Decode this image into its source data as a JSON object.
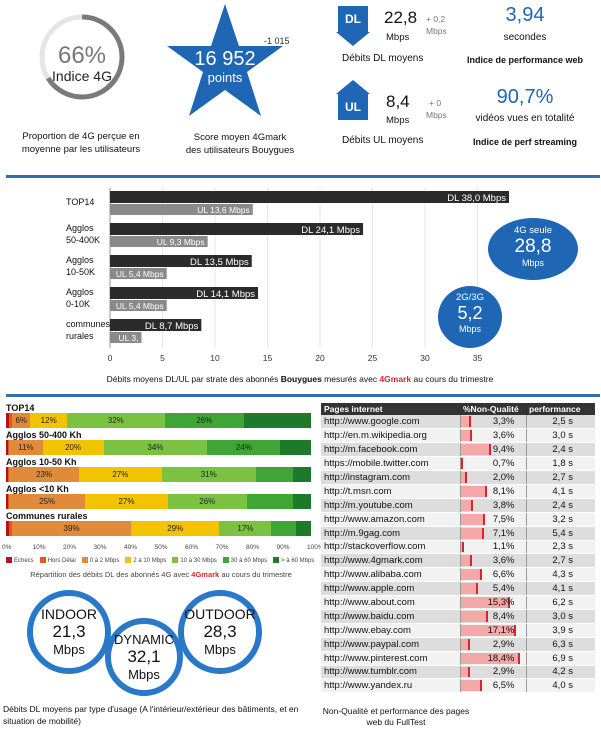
{
  "kpis": {
    "indice_4g": {
      "value": "66%",
      "label": "Indice 4G",
      "caption": "Proportion de 4G perçue en moyenne par les utilisateurs",
      "pct": 66
    },
    "score": {
      "delta": "-1 015",
      "value": "16 952",
      "unit": "points",
      "caption1": "Score moyen 4Gmark",
      "caption2": "des utilisateurs Bouygues"
    },
    "dl": {
      "arrow": "DL",
      "value": "22,8",
      "unit": "Mbps",
      "delta": "+ 0,2",
      "delta_unit": "Mbps",
      "caption": "Débits DL moyens"
    },
    "ul": {
      "arrow": "UL",
      "value": "8,4",
      "unit": "Mbps",
      "delta": "+ 0",
      "delta_unit": "Mbps",
      "caption": "Débits UL moyens"
    },
    "web": {
      "value": "3,94",
      "unit": "secondes",
      "caption": "Indice de performance web"
    },
    "streaming": {
      "value": "90,7%",
      "unit": "vidéos vues en totalité",
      "caption": "Indice de perf streaming"
    }
  },
  "bubbles": {
    "b4g": {
      "l1": "4G seule",
      "l2": "28,8",
      "l3": "Mbps"
    },
    "b23g": {
      "l1": "2G/3G",
      "l2": "5,2",
      "l3": "Mbps"
    }
  },
  "colors": {
    "dl_bar": "#2b2b2b",
    "ul_bar": "#8a8a8a",
    "accent": "#1f66b5",
    "red": "#d9262b"
  },
  "chart_data": [
    {
      "type": "bar",
      "orientation": "horizontal",
      "categories": [
        "TOP14",
        "Agglos 50-400K",
        "Agglos 10-50K",
        "Agglos 0-10K",
        "communes rurales"
      ],
      "category_lines": [
        [
          "TOP14"
        ],
        [
          "Agglos",
          "50-400K"
        ],
        [
          "Agglos",
          "10-50K"
        ],
        [
          "Agglos",
          "0-10K"
        ],
        [
          "communes",
          "rurales"
        ]
      ],
      "series": [
        {
          "name": "DL",
          "values": [
            38.0,
            24.1,
            13.5,
            14.1,
            8.7
          ],
          "labels": [
            "DL 38,0 Mbps",
            "DL 24,1 Mbps",
            "DL 13,5 Mbps",
            "DL 14,1 Mbps",
            "DL 8,7 Mbps"
          ]
        },
        {
          "name": "UL",
          "values": [
            13.6,
            9.3,
            5.4,
            5.4,
            3.0
          ],
          "labels": [
            "UL 13,6 Mbps",
            "UL 9,3 Mbps",
            "UL 5,4 Mbps",
            "UL 5,4 Mbps",
            "UL 3,"
          ]
        }
      ],
      "xlim": [
        0,
        40
      ],
      "xticks": [
        0,
        5,
        10,
        15,
        20,
        25,
        30,
        35
      ],
      "caption_pre": "Débits moyens DL/UL par strate des abonnés ",
      "caption_bold": "Bouygues",
      "caption_mid": " mesurés avec ",
      "caption_brand": "4Gmark",
      "caption_post": " au cours du trimestre"
    },
    {
      "type": "bar",
      "orientation": "horizontal",
      "stacked": true,
      "categories": [
        "TOP14",
        "Agglos 50-400 Kh",
        "Agglos 10-50 Kh",
        "Agglos <10 Kh",
        "Communes rurales"
      ],
      "series_names": [
        "Echecs",
        "Hors Délai",
        "0 à 2 Mbps",
        "2 à 10 Mbps",
        "10 à 30 Mbps",
        "30 à 60 Mbps",
        "> à 60 Mbps"
      ],
      "series_colors": [
        "#b0141a",
        "#e05a1e",
        "#e08a3a",
        "#f2c300",
        "#7cc242",
        "#3fa535",
        "#1d7a2a"
      ],
      "values": [
        [
          1,
          1,
          6,
          12,
          32,
          26,
          22
        ],
        [
          0.5,
          0.5,
          11,
          20,
          34,
          24,
          10
        ],
        [
          0.5,
          0.5,
          23,
          27,
          31,
          12,
          6
        ],
        [
          0.5,
          0.5,
          25,
          27,
          26,
          15,
          6
        ],
        [
          1,
          1,
          39,
          29,
          17,
          8,
          5
        ]
      ],
      "segment_labels": [
        [
          "",
          "",
          "6%",
          "12%",
          "32%",
          "26%",
          ""
        ],
        [
          "",
          "",
          "11%",
          "20%",
          "34%",
          "24%",
          ""
        ],
        [
          "",
          "",
          "23%",
          "27%",
          "31%",
          "",
          ""
        ],
        [
          "",
          "",
          "25%",
          "27%",
          "26%",
          "",
          ""
        ],
        [
          "",
          "",
          "39%",
          "29%",
          "17%",
          "",
          ""
        ]
      ],
      "xticks": [
        "0%",
        "10%",
        "20%",
        "30%",
        "40%",
        "50%",
        "60%",
        "70%",
        "80%",
        "90%",
        "100%"
      ],
      "caption_pre": "Répartition des débits DL des abonnés 4G avec ",
      "caption_brand": "4Gmark",
      "caption_post": " au cours du trimestre"
    },
    {
      "type": "table",
      "headers": [
        "Pages internet",
        "%Non-Qualité",
        "performance"
      ],
      "rows": [
        [
          "http://www.google.com",
          "3,3%",
          "2,5 s",
          3.3
        ],
        [
          "http://en.m.wikipedia.org",
          "3,6%",
          "3,0 s",
          3.6
        ],
        [
          "http://m.facebook.com",
          "9,4%",
          "2,4 s",
          9.4
        ],
        [
          "https://mobile.twitter.com",
          "0,7%",
          "1,8 s",
          0.7
        ],
        [
          "http://instagram.com",
          "2,0%",
          "2,7 s",
          2.0
        ],
        [
          "http://t.msn.com",
          "8,1%",
          "4,1 s",
          8.1
        ],
        [
          "http://m.youtube.com",
          "3,8%",
          "2,4 s",
          3.8
        ],
        [
          "http://www.amazon.com",
          "7,5%",
          "3,2 s",
          7.5
        ],
        [
          "http://m.9gag.com",
          "7,1%",
          "5,4 s",
          7.1
        ],
        [
          "http://stackoverflow.com",
          "1,1%",
          "2,3 s",
          1.1
        ],
        [
          "http://www.4gmark.com",
          "3,6%",
          "2,7 s",
          3.6
        ],
        [
          "http://www.alibaba.com",
          "6,6%",
          "4,3 s",
          6.6
        ],
        [
          "http://www.apple.com",
          "5,4%",
          "4,1 s",
          5.4
        ],
        [
          "http://www.about.com",
          "15,3%",
          "6,2 s",
          15.3
        ],
        [
          "http://www.baidu.com",
          "8,4%",
          "3,0 s",
          8.4
        ],
        [
          "http://www.ebay.com",
          "17,1%",
          "3,9 s",
          17.1
        ],
        [
          "http://www.paypal.com",
          "2,9%",
          "6,3 s",
          2.9
        ],
        [
          "http://www.pinterest.com",
          "18,4%",
          "6,9 s",
          18.4
        ],
        [
          "http://www.tumblr.com",
          "2,9%",
          "4,2 s",
          2.9
        ],
        [
          "http://www.yandex.ru",
          "6,5%",
          "4,0 s",
          6.5
        ]
      ],
      "caption": "Non-Qualité et performance des pages web du FullTest"
    }
  ],
  "usage": {
    "indoor": {
      "name": "INDOOR",
      "value": "21,3",
      "unit": "Mbps"
    },
    "dynamic": {
      "name": "DYNAMIC",
      "value": "32,1",
      "unit": "Mbps"
    },
    "outdoor": {
      "name": "OUTDOOR",
      "value": "28,3",
      "unit": "Mbps"
    },
    "caption": "Débits DL moyens par type d'usage (A l'intérieur/extérieur des bâtiments, et en situation de mobilité)"
  }
}
